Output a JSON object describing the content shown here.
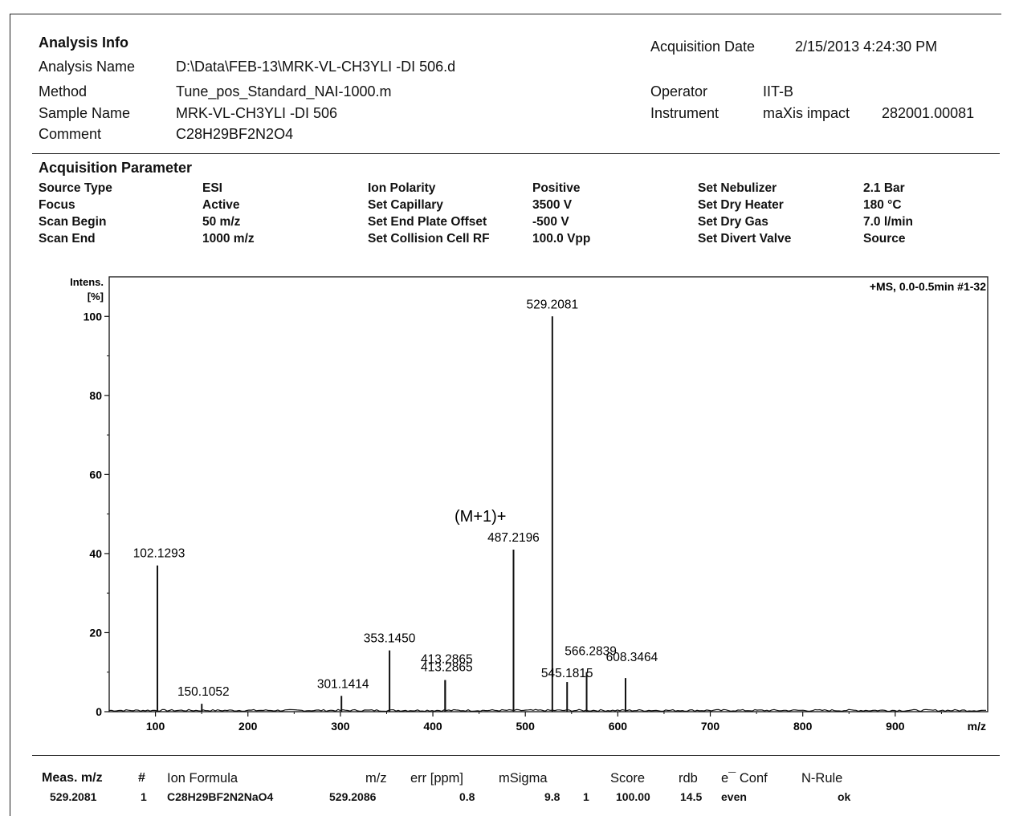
{
  "analysis_info": {
    "heading": "Analysis Info",
    "rows": [
      {
        "label": "Analysis Name",
        "value": "D:\\Data\\FEB-13\\MRK-VL-CH3YLI -DI 506.d"
      },
      {
        "label": "Method",
        "value": "Tune_pos_Standard_NAI-1000.m"
      },
      {
        "label": "Sample Name",
        "value": "MRK-VL-CH3YLI -DI 506"
      },
      {
        "label": "Comment",
        "value": "C28H29BF2N2O4"
      }
    ],
    "acquisition_date": {
      "label": "Acquisition Date",
      "value": "2/15/2013 4:24:30 PM"
    },
    "operator": {
      "label": "Operator",
      "value": "IIT-B"
    },
    "instrument": {
      "label": "Instrument",
      "value": "maXis impact",
      "serial": "282001.00081"
    }
  },
  "acquisition_parameter": {
    "heading": "Acquisition Parameter",
    "columns": [
      [
        {
          "label": "Source Type",
          "value": "ESI"
        },
        {
          "label": "Focus",
          "value": "Active"
        },
        {
          "label": "Scan Begin",
          "value": "50 m/z"
        },
        {
          "label": "Scan End",
          "value": "1000 m/z"
        }
      ],
      [
        {
          "label": "Ion Polarity",
          "value": "Positive"
        },
        {
          "label": "Set Capillary",
          "value": "3500 V"
        },
        {
          "label": "Set End Plate Offset",
          "value": "-500 V"
        },
        {
          "label": "Set Collision Cell RF",
          "value": "100.0 Vpp"
        }
      ],
      [
        {
          "label": "Set Nebulizer",
          "value": "2.1 Bar"
        },
        {
          "label": "Set Dry Heater",
          "value": "180 °C"
        },
        {
          "label": "Set Dry Gas",
          "value": "7.0 l/min"
        },
        {
          "label": "Set Divert Valve",
          "value": "Source"
        }
      ]
    ]
  },
  "chart_data": {
    "type": "bar",
    "title": "+MS, 0.0-0.5min #1-32",
    "ylabel_line1": "Intens.",
    "ylabel_line2": "[%]",
    "xlabel": "m/z",
    "xlim": [
      50,
      1000
    ],
    "ylim": [
      0,
      110
    ],
    "xticks": [
      100,
      200,
      300,
      400,
      500,
      600,
      700,
      800,
      900
    ],
    "yticks": [
      0,
      20,
      40,
      60,
      80,
      100
    ],
    "annotation": "(M+1)+",
    "peaks": [
      {
        "x": 102.1293,
        "y": 37,
        "label": "102.1293"
      },
      {
        "x": 150.1052,
        "y": 2,
        "label": "150.1052"
      },
      {
        "x": 301.1414,
        "y": 4,
        "label": "301.1414"
      },
      {
        "x": 353.145,
        "y": 15.5,
        "label": "353.1450"
      },
      {
        "x": 413.2865,
        "y": 8,
        "label": "413.2865"
      },
      {
        "x": 413.2865,
        "y": 8,
        "label": "413.2865"
      },
      {
        "x": 487.2196,
        "y": 41,
        "label": "487.2196"
      },
      {
        "x": 529.2081,
        "y": 100,
        "label": "529.2081"
      },
      {
        "x": 545.1815,
        "y": 7.5,
        "label": "545.1815"
      },
      {
        "x": 566.2839,
        "y": 10,
        "label": "566.2839"
      },
      {
        "x": 608.3464,
        "y": 8.5,
        "label": "608.3464"
      }
    ]
  },
  "results": {
    "headers": [
      "Meas. m/z",
      "#",
      "Ion Formula",
      "m/z",
      "err [ppm]",
      "mSigma",
      "#",
      "Score",
      "rdb",
      "e¯ Conf",
      "N-Rule"
    ],
    "row": [
      "529.2081",
      "1",
      "C28H29BF2N2NaO4",
      "529.2086",
      "0.8",
      "9.8",
      "1",
      "100.00",
      "14.5",
      "even",
      "ok"
    ]
  }
}
